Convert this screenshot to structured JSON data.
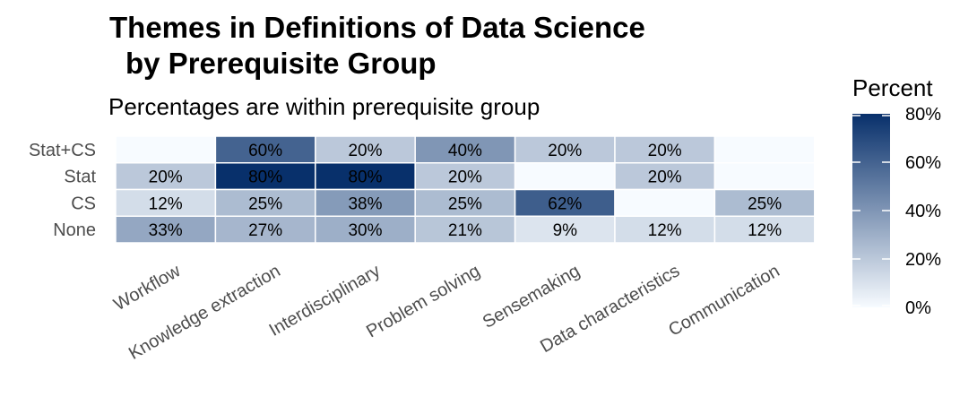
{
  "chart_data": {
    "type": "heatmap",
    "title_line1": "Themes in Definitions of Data Science",
    "title_line2": "by Prerequisite Group",
    "subtitle": "Percentages are within prerequisite group",
    "rows": [
      "Stat+CS",
      "Stat",
      "CS",
      "None"
    ],
    "columns": [
      "Workflow",
      "Knowledge extraction",
      "Interdisciplinary",
      "Problem solving",
      "Sensemaking",
      "Data characteristics",
      "Communication"
    ],
    "values": [
      [
        0,
        60,
        20,
        40,
        20,
        20,
        0
      ],
      [
        20,
        80,
        80,
        20,
        0,
        20,
        0
      ],
      [
        12,
        25,
        38,
        25,
        62,
        0,
        25
      ],
      [
        33,
        27,
        30,
        21,
        9,
        12,
        12
      ]
    ],
    "labels": [
      [
        "",
        "60%",
        "20%",
        "40%",
        "20%",
        "20%",
        ""
      ],
      [
        "20%",
        "80%",
        "80%",
        "20%",
        "",
        "20%",
        ""
      ],
      [
        "12%",
        "25%",
        "38%",
        "25%",
        "62%",
        "",
        "25%"
      ],
      [
        "33%",
        "27%",
        "30%",
        "21%",
        "9%",
        "12%",
        "12%"
      ]
    ],
    "legend": {
      "title": "Percent",
      "ticks": [
        "80%",
        "60%",
        "40%",
        "20%",
        "0%"
      ],
      "tick_values": [
        80,
        60,
        40,
        20,
        0
      ],
      "range": [
        0,
        80
      ]
    },
    "colors": {
      "low": "#f7fbff",
      "high": "#08306b",
      "tick": "#ffffff"
    }
  }
}
